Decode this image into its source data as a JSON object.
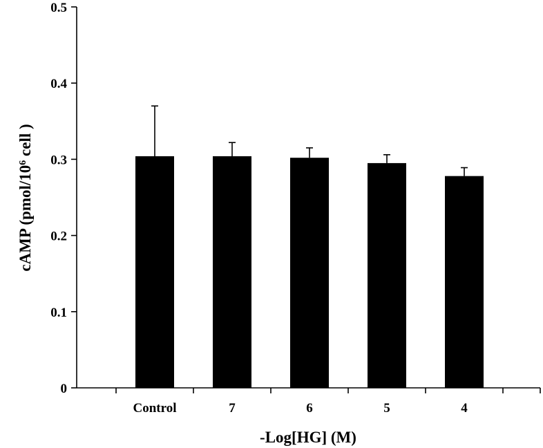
{
  "chart_data": {
    "type": "bar",
    "title": "",
    "xlabel": "-Log[HG] (M)",
    "ylabel": {
      "main": "cAMP (pmol/10",
      "superscript": "6",
      "suffix": " cell )"
    },
    "categories": [
      "Control",
      "7",
      "6",
      "5",
      "4"
    ],
    "values": [
      0.304,
      0.304,
      0.302,
      0.295,
      0.278
    ],
    "errors": [
      0.066,
      0.018,
      0.013,
      0.011,
      0.011
    ],
    "ylim": [
      0,
      0.5
    ],
    "yticks": [
      0,
      0.1,
      0.2,
      0.3,
      0.4,
      0.5
    ],
    "ytick_labels": [
      "0",
      "0.1",
      "0.2",
      "0.3",
      "0.4",
      "0.5"
    ],
    "bar_color": "#000000",
    "grid": false,
    "legend": "none"
  }
}
